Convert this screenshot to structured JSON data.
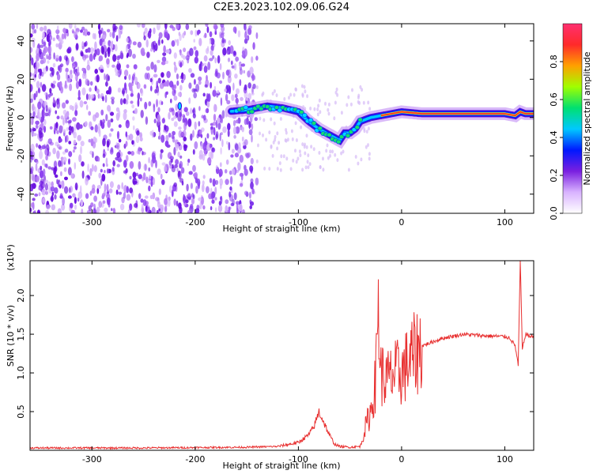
{
  "title": "C2E3.2023.102.09.06.G24",
  "chart_data": [
    {
      "type": "heatmap",
      "xlabel": "Height of straight line (km)",
      "ylabel": "Frequency (Hz)",
      "xlim": [
        -360,
        128
      ],
      "ylim": [
        -50,
        49
      ],
      "xticks": [
        -300,
        -200,
        -100,
        0,
        100
      ],
      "xtick_labels": [
        "-300",
        "-200",
        "-100",
        "0",
        "100"
      ],
      "yticks": [
        -40,
        -20,
        0,
        20,
        40
      ],
      "ytick_labels": [
        "-40",
        "-20",
        "0",
        "20",
        "40"
      ],
      "ridge": {
        "x": [
          -215,
          -170,
          -150,
          -130,
          -115,
          -100,
          -90,
          -80,
          -70,
          -60,
          -55,
          -50,
          -45,
          -40,
          -30,
          -20,
          -10,
          0,
          20,
          50,
          80,
          100,
          110,
          115,
          120,
          128
        ],
        "y": [
          6,
          3,
          4,
          6,
          5,
          3,
          -2,
          -6,
          -9,
          -12,
          -8,
          -8,
          -6,
          -2,
          0,
          1,
          2,
          3,
          2,
          2,
          2,
          2,
          1,
          3,
          2,
          2
        ]
      },
      "colorbar": {
        "label": "Normalized spectral amplitude",
        "range": [
          0,
          1
        ],
        "ticks": [
          0,
          0.2,
          0.4,
          0.6,
          0.8
        ],
        "tick_labels": [
          "0.0",
          "0.2",
          "0.4",
          "0.6",
          "0.8"
        ],
        "colors": [
          "#ffffff",
          "#d9b3ff",
          "#7a1fe0",
          "#0018ff",
          "#00c8ff",
          "#00e070",
          "#a0ff00",
          "#ffa000",
          "#ff2a2a",
          "#ff3070"
        ]
      }
    },
    {
      "type": "line",
      "xlabel": "Height of straight line (km)",
      "ylabel": "SNR (10 * v/v)",
      "scale_label": "(x10⁴)",
      "xlim": [
        -360,
        128
      ],
      "ylim": [
        0,
        2.45
      ],
      "xticks": [
        -300,
        -200,
        -100,
        0,
        100
      ],
      "xtick_labels": [
        "-300",
        "-200",
        "-100",
        "0",
        "100"
      ],
      "yticks": [
        0.5,
        1.0,
        1.5,
        2.0
      ],
      "ytick_labels": [
        "0.5",
        "1.0",
        "1.5",
        "2.0"
      ],
      "color": "#e83030",
      "series": [
        {
          "x": [
            -360,
            -250,
            -150,
            -120,
            -100,
            -90,
            -85,
            -80,
            -75,
            -70,
            -65,
            -60,
            -50,
            -40,
            -35,
            -30,
            -25,
            -23,
            -20,
            -15,
            -10,
            -5,
            0,
            10,
            20,
            30,
            40,
            60,
            80,
            100,
            105,
            110,
            113,
            115,
            117,
            120,
            125,
            128
          ],
          "y": [
            0.03,
            0.03,
            0.04,
            0.05,
            0.1,
            0.2,
            0.3,
            0.5,
            0.35,
            0.2,
            0.08,
            0.05,
            0.04,
            0.05,
            0.3,
            0.5,
            0.9,
            1.95,
            1.0,
            0.9,
            0.95,
            1.0,
            1.0,
            1.2,
            1.35,
            1.4,
            1.45,
            1.5,
            1.48,
            1.47,
            1.45,
            1.35,
            1.1,
            2.45,
            1.3,
            1.5,
            1.47,
            1.47
          ]
        }
      ]
    }
  ]
}
